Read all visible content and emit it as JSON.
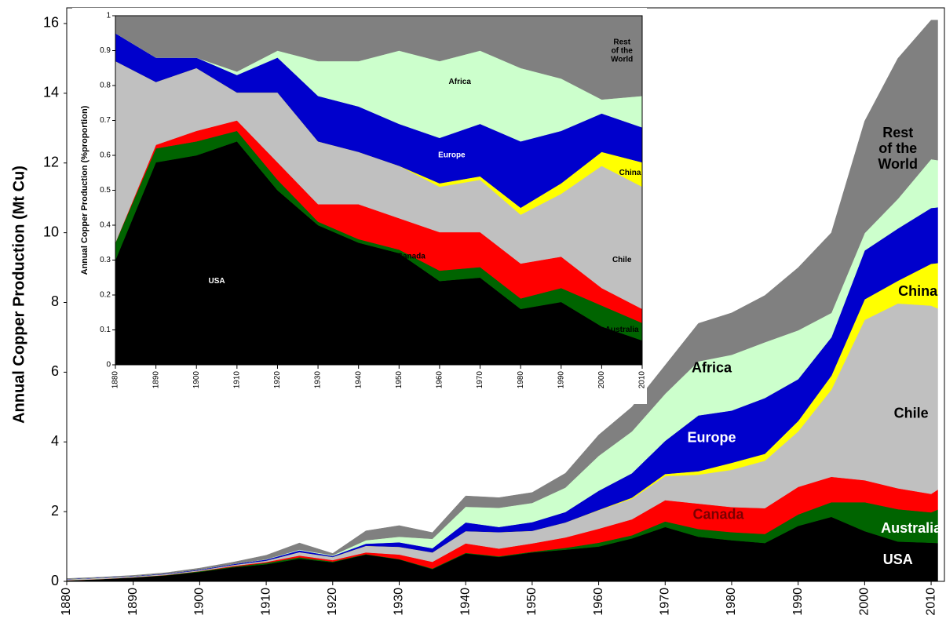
{
  "chart_data": [
    {
      "type": "stacked_area",
      "y_label": "Annual Copper Production (Mt Cu)",
      "x": [
        1880,
        1885,
        1890,
        1895,
        1900,
        1905,
        1910,
        1915,
        1920,
        1925,
        1930,
        1935,
        1940,
        1945,
        1950,
        1955,
        1960,
        1965,
        1970,
        1975,
        1980,
        1985,
        1990,
        1995,
        2000,
        2005,
        2010,
        2011
      ],
      "xlim": [
        1880,
        2012
      ],
      "xticks": [
        1880,
        1890,
        1900,
        1910,
        1920,
        1930,
        1940,
        1950,
        1960,
        1970,
        1980,
        1990,
        2000,
        2010
      ],
      "ylim": [
        0,
        16.45
      ],
      "yticks": [
        0,
        2,
        4,
        6,
        8,
        10,
        12,
        14,
        16
      ],
      "series": [
        {
          "name": "USA",
          "color": "#000000",
          "values": [
            0.025,
            0.06,
            0.11,
            0.17,
            0.27,
            0.4,
            0.49,
            0.65,
            0.55,
            0.77,
            0.63,
            0.35,
            0.8,
            0.7,
            0.83,
            0.91,
            1.0,
            1.23,
            1.56,
            1.28,
            1.18,
            1.1,
            1.59,
            1.85,
            1.44,
            1.14,
            1.11,
            1.1
          ]
        },
        {
          "name": "Australia",
          "color": "#006400",
          "values": [
            0.005,
            0.005,
            0.005,
            0.01,
            0.02,
            0.02,
            0.04,
            0.04,
            0.02,
            0.01,
            0.01,
            0.02,
            0.02,
            0.02,
            0.02,
            0.05,
            0.11,
            0.09,
            0.16,
            0.22,
            0.23,
            0.26,
            0.33,
            0.42,
            0.83,
            0.93,
            0.87,
            0.96
          ]
        },
        {
          "name": "Canada",
          "color": "#ff0000",
          "values": [
            0,
            0,
            0,
            0.005,
            0.005,
            0.02,
            0.025,
            0.05,
            0.04,
            0.05,
            0.13,
            0.19,
            0.27,
            0.22,
            0.24,
            0.3,
            0.4,
            0.46,
            0.61,
            0.73,
            0.72,
            0.74,
            0.79,
            0.73,
            0.63,
            0.6,
            0.53,
            0.57
          ]
        },
        {
          "name": "Chile",
          "color": "#c0c0c0",
          "values": [
            0.03,
            0.035,
            0.03,
            0.025,
            0.025,
            0.03,
            0.04,
            0.1,
            0.09,
            0.19,
            0.22,
            0.27,
            0.35,
            0.47,
            0.36,
            0.43,
            0.53,
            0.59,
            0.69,
            0.83,
            1.07,
            1.36,
            1.59,
            2.5,
            4.6,
            5.3,
            5.4,
            5.2
          ]
        },
        {
          "name": "China",
          "color": "#ffff00",
          "values": [
            0,
            0,
            0,
            0,
            0,
            0,
            0,
            0,
            0,
            0,
            0,
            0,
            0,
            0,
            0,
            0,
            0.01,
            0.03,
            0.06,
            0.1,
            0.2,
            0.2,
            0.3,
            0.4,
            0.59,
            0.65,
            1.2,
            1.3
          ]
        },
        {
          "name": "Europe",
          "color": "#0000cc",
          "values": [
            0.01,
            0.01,
            0.01,
            0.015,
            0.02,
            0.025,
            0.03,
            0.05,
            0.03,
            0.06,
            0.13,
            0.12,
            0.25,
            0.15,
            0.25,
            0.3,
            0.55,
            0.7,
            0.95,
            1.6,
            1.5,
            1.6,
            1.2,
            1.1,
            1.4,
            1.5,
            1.6,
            1.6
          ]
        },
        {
          "name": "Africa",
          "color": "#ccffcc",
          "values": [
            0,
            0,
            0,
            0,
            0,
            0,
            0.01,
            0.02,
            0.02,
            0.1,
            0.16,
            0.27,
            0.45,
            0.55,
            0.55,
            0.7,
            1.0,
            1.2,
            1.35,
            1.55,
            1.6,
            1.6,
            1.4,
            0.7,
            0.5,
            0.85,
            1.4,
            1.35
          ]
        },
        {
          "name": "Rest of the World",
          "color": "#808080",
          "values": [
            0.01,
            0.01,
            0.015,
            0.025,
            0.04,
            0.055,
            0.115,
            0.19,
            0.05,
            0.27,
            0.32,
            0.18,
            0.31,
            0.29,
            0.3,
            0.41,
            0.6,
            0.7,
            0.82,
            1.09,
            1.2,
            1.34,
            1.8,
            2.3,
            3.21,
            4.03,
            3.99,
            4.02
          ]
        }
      ]
    },
    {
      "type": "stacked_area",
      "y_label": "Annual Copper Production (%proportion)",
      "x": [
        1880,
        1890,
        1900,
        1910,
        1920,
        1930,
        1940,
        1950,
        1960,
        1970,
        1980,
        1990,
        2000,
        2010
      ],
      "xlim": [
        1880,
        2010
      ],
      "xticks": [
        1880,
        1890,
        1900,
        1910,
        1920,
        1930,
        1940,
        1950,
        1960,
        1970,
        1980,
        1990,
        2000,
        2010
      ],
      "ylim": [
        0,
        1
      ],
      "yticks": [
        0,
        0.1,
        0.2,
        0.3,
        0.4,
        0.5,
        0.6,
        0.7,
        0.8,
        0.9,
        1
      ],
      "series": [
        {
          "name": "USA",
          "color": "#000000",
          "values": [
            0.3,
            0.58,
            0.6,
            0.64,
            0.5,
            0.4,
            0.35,
            0.32,
            0.24,
            0.25,
            0.16,
            0.18,
            0.11,
            0.07
          ]
        },
        {
          "name": "Australia",
          "color": "#006400",
          "values": [
            0.05,
            0.04,
            0.04,
            0.03,
            0.03,
            0.01,
            0.01,
            0.01,
            0.03,
            0.03,
            0.03,
            0.04,
            0.06,
            0.05
          ]
        },
        {
          "name": "Canada",
          "color": "#ff0000",
          "values": [
            0,
            0.01,
            0.03,
            0.03,
            0.05,
            0.05,
            0.1,
            0.09,
            0.11,
            0.1,
            0.1,
            0.09,
            0.05,
            0.04
          ]
        },
        {
          "name": "Chile",
          "color": "#c0c0c0",
          "values": [
            0.52,
            0.18,
            0.18,
            0.08,
            0.2,
            0.18,
            0.15,
            0.15,
            0.13,
            0.15,
            0.14,
            0.18,
            0.35,
            0.35
          ]
        },
        {
          "name": "China",
          "color": "#ffff00",
          "values": [
            0,
            0,
            0,
            0,
            0,
            0,
            0,
            0,
            0.01,
            0.01,
            0.02,
            0.03,
            0.04,
            0.07
          ]
        },
        {
          "name": "Europe",
          "color": "#0000cc",
          "values": [
            0.08,
            0.07,
            0.03,
            0.05,
            0.1,
            0.13,
            0.13,
            0.12,
            0.13,
            0.15,
            0.19,
            0.15,
            0.11,
            0.1
          ]
        },
        {
          "name": "Africa",
          "color": "#ccffcc",
          "values": [
            0,
            0,
            0,
            0.01,
            0.02,
            0.1,
            0.13,
            0.21,
            0.22,
            0.21,
            0.21,
            0.15,
            0.04,
            0.09
          ]
        },
        {
          "name": "Rest of the World",
          "color": "#808080",
          "values": [
            0.05,
            0.12,
            0.12,
            0.16,
            0.1,
            0.13,
            0.13,
            0.1,
            0.13,
            0.1,
            0.15,
            0.18,
            0.24,
            0.23
          ]
        }
      ]
    }
  ]
}
